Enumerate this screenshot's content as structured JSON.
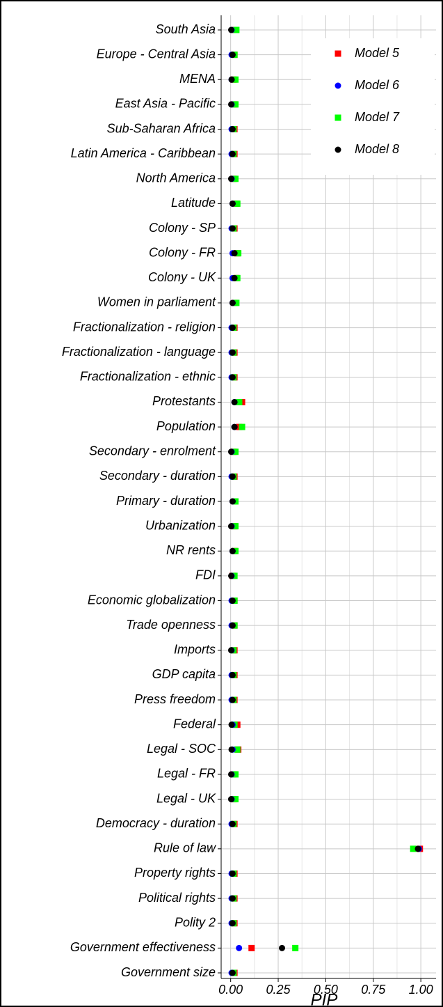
{
  "chart_data": {
    "type": "dot",
    "x_label": "PIP",
    "categories": [
      "South Asia",
      "Europe - Central Asia",
      "MENA",
      "East Asia - Pacific",
      "Sub-Saharan Africa",
      "Latin America - Caribbean",
      "North America",
      "Latitude",
      "Colony - SP",
      "Colony - FR",
      "Colony - UK",
      "Women in parliament",
      "Fractionalization - religion",
      "Fractionalization - language",
      "Fractionalization - ethnic",
      "Protestants",
      "Population",
      "Secondary - enrolment",
      "Secondary - duration",
      "Primary - duration",
      "Urbanization",
      "NR rents",
      "FDI",
      "Economic globalization",
      "Trade openness",
      "Imports",
      "GDP capita",
      "Press freedom",
      "Federal",
      "Legal - SOC",
      "Legal - FR",
      "Legal - UK",
      "Democracy - duration",
      "Rule of law",
      "Property rights",
      "Political rights",
      "Polity 2",
      "Government effectiveness",
      "Government size"
    ],
    "series": [
      {
        "name": "Model 5",
        "color": "#ff0000",
        "marker": "square",
        "values": [
          0.025,
          0.02,
          0.015,
          0.02,
          0.02,
          0.02,
          0.015,
          0.03,
          0.02,
          0.035,
          0.03,
          0.02,
          0.02,
          0.02,
          0.02,
          0.06,
          0.045,
          0.015,
          0.02,
          0.02,
          0.02,
          0.02,
          0.01,
          0.02,
          0.02,
          0.02,
          0.02,
          0.02,
          0.035,
          0.04,
          0.015,
          0.015,
          0.02,
          0.995,
          0.02,
          0.02,
          0.02,
          0.11,
          0.02
        ]
      },
      {
        "name": "Model 6",
        "color": "#0000ff",
        "marker": "circle",
        "values": [
          0.005,
          0.005,
          0.005,
          0.005,
          0.005,
          0.005,
          0.005,
          0.01,
          0.005,
          0.01,
          0.01,
          0.01,
          0.005,
          0.005,
          0.005,
          0.02,
          0.02,
          0.005,
          0.005,
          0.01,
          0.005,
          0.01,
          0.005,
          0.005,
          0.005,
          0.005,
          0.005,
          0.005,
          0.01,
          0.01,
          0.005,
          0.005,
          0.005,
          0.99,
          0.005,
          0.005,
          0.005,
          0.044,
          0.005
        ]
      },
      {
        "name": "Model 7",
        "color": "#00ff00",
        "marker": "square",
        "values": [
          0.03,
          0.02,
          0.025,
          0.025,
          0.015,
          0.015,
          0.025,
          0.035,
          0.015,
          0.04,
          0.035,
          0.03,
          0.015,
          0.015,
          0.015,
          0.045,
          0.06,
          0.025,
          0.015,
          0.025,
          0.025,
          0.025,
          0.02,
          0.02,
          0.02,
          0.015,
          0.015,
          0.015,
          0.02,
          0.035,
          0.025,
          0.025,
          0.015,
          0.96,
          0.015,
          0.015,
          0.015,
          0.34,
          0.015
        ]
      },
      {
        "name": "Model 8",
        "color": "#000000",
        "marker": "circle",
        "values": [
          0.003,
          0.01,
          0.005,
          0.003,
          0.01,
          0.01,
          0.003,
          0.01,
          0.01,
          0.02,
          0.02,
          0.01,
          0.01,
          0.01,
          0.01,
          0.02,
          0.02,
          0.003,
          0.01,
          0.01,
          0.003,
          0.01,
          0.003,
          0.01,
          0.01,
          0.003,
          0.01,
          0.01,
          0.005,
          0.005,
          0.003,
          0.003,
          0.01,
          0.985,
          0.01,
          0.01,
          0.01,
          0.27,
          0.01
        ]
      }
    ],
    "xlim": [
      -0.05,
      1.08
    ],
    "xticks": [
      {
        "value": 0,
        "label": "0.00"
      },
      {
        "value": 0.25,
        "label": "0.25"
      },
      {
        "value": 0.5,
        "label": "0.50"
      },
      {
        "value": 0.75,
        "label": "0.75"
      },
      {
        "value": 1,
        "label": "1.00"
      }
    ],
    "grid": true,
    "legend": "top-right"
  }
}
